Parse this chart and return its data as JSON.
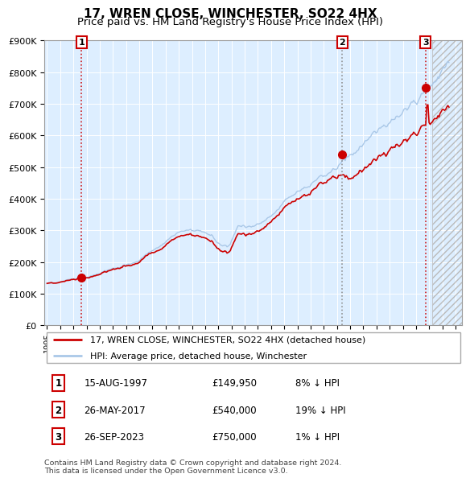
{
  "title": "17, WREN CLOSE, WINCHESTER, SO22 4HX",
  "subtitle": "Price paid vs. HM Land Registry's House Price Index (HPI)",
  "ylim": [
    0,
    900000
  ],
  "yticks": [
    0,
    100000,
    200000,
    300000,
    400000,
    500000,
    600000,
    700000,
    800000,
    900000
  ],
  "ytick_labels": [
    "£0",
    "£100K",
    "£200K",
    "£300K",
    "£400K",
    "£500K",
    "£600K",
    "£700K",
    "£800K",
    "£900K"
  ],
  "x_start_year": 1994.8,
  "x_end_year": 2026.5,
  "xtick_years": [
    1995,
    1996,
    1997,
    1998,
    1999,
    2000,
    2001,
    2002,
    2003,
    2004,
    2005,
    2006,
    2007,
    2008,
    2009,
    2010,
    2011,
    2012,
    2013,
    2014,
    2015,
    2016,
    2017,
    2018,
    2019,
    2020,
    2021,
    2022,
    2023,
    2024,
    2025,
    2026
  ],
  "hpi_color": "#aac8e8",
  "price_color": "#cc0000",
  "marker_color": "#cc0000",
  "sale1_year": 1997.62,
  "sale1_price": 149950,
  "sale2_year": 2017.4,
  "sale2_price": 540000,
  "sale3_year": 2023.73,
  "sale3_price": 750000,
  "legend_label1": "17, WREN CLOSE, WINCHESTER, SO22 4HX (detached house)",
  "legend_label2": "HPI: Average price, detached house, Winchester",
  "table_entries": [
    {
      "num": "1",
      "date": "15-AUG-1997",
      "price": "£149,950",
      "hpi": "8% ↓ HPI"
    },
    {
      "num": "2",
      "date": "26-MAY-2017",
      "price": "£540,000",
      "hpi": "19% ↓ HPI"
    },
    {
      "num": "3",
      "date": "26-SEP-2023",
      "price": "£750,000",
      "hpi": "1% ↓ HPI"
    }
  ],
  "footnote": "Contains HM Land Registry data © Crown copyright and database right 2024.\nThis data is licensed under the Open Government Licence v3.0.",
  "bg_color": "#ddeeff",
  "grid_color": "#ffffff",
  "title_fontsize": 11,
  "subtitle_fontsize": 9.5,
  "hatch_start": 2024.25
}
